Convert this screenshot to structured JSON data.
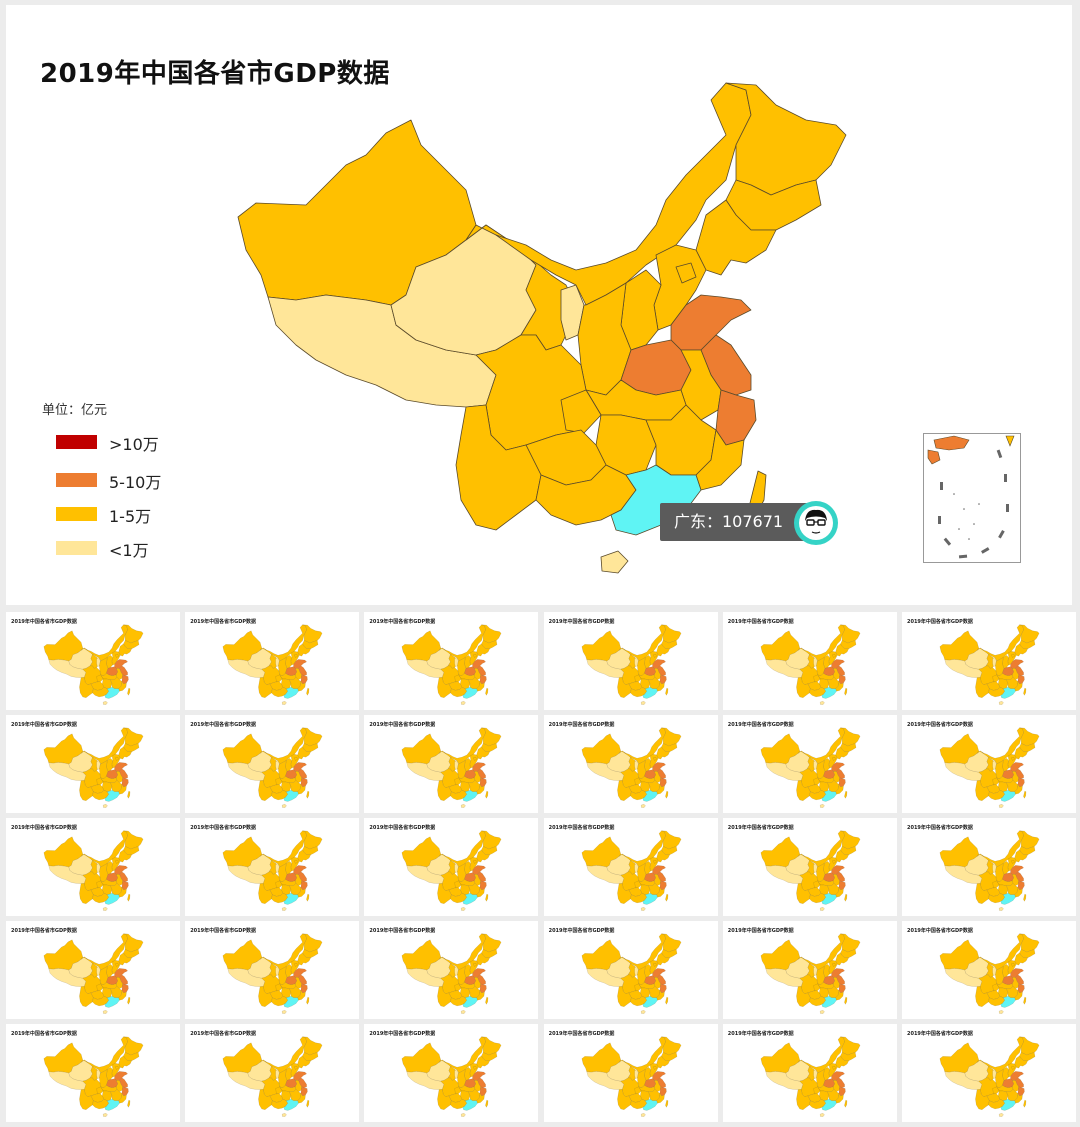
{
  "title": "2019年中国各省市GDP数据",
  "unit_label": "单位：亿元",
  "legend": [
    {
      "label": ">10万",
      "color": "#c00000"
    },
    {
      "label": "5-10万",
      "color": "#ed7d31"
    },
    {
      "label": "1-5万",
      "color": "#ffc000"
    },
    {
      "label": "<1万",
      "color": "#ffe699"
    }
  ],
  "highlight_color": "#5ff4f4",
  "tooltip": {
    "text": "广东：107671"
  },
  "thumbnails": {
    "count": 30,
    "title": "2019年中国各省市GDP数据"
  }
}
